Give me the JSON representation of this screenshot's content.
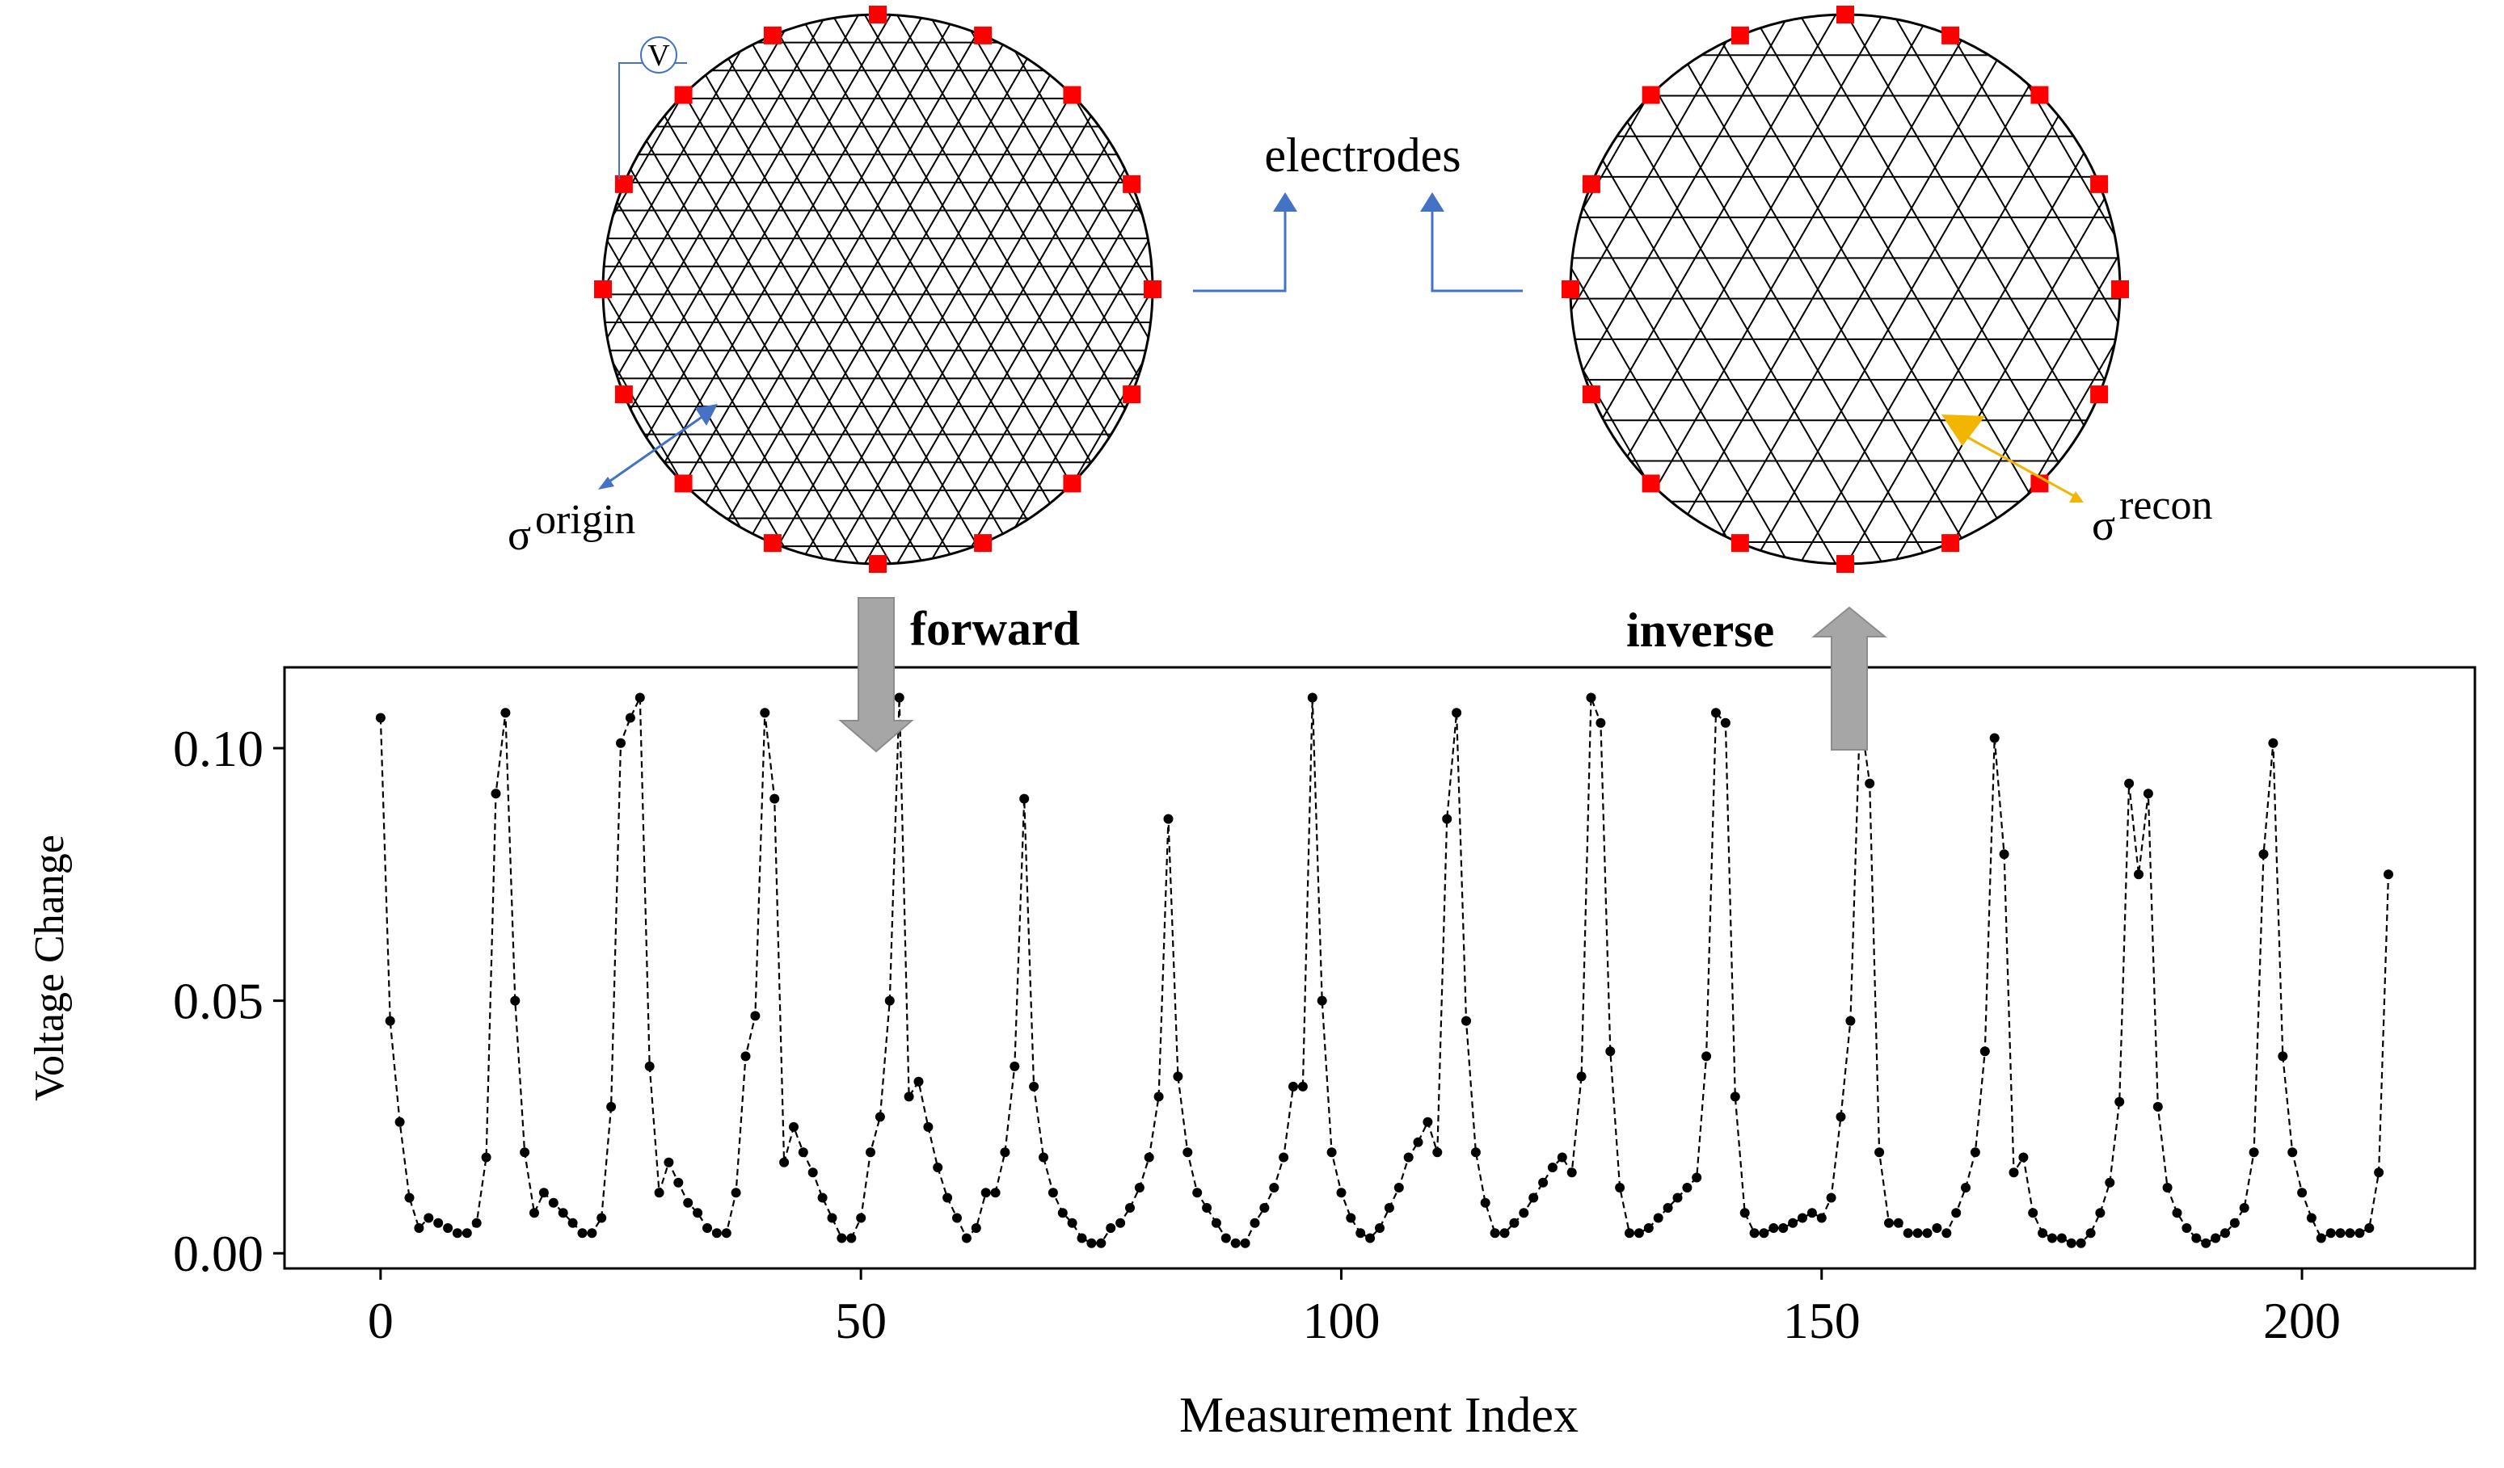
{
  "figure": {
    "electrodes_label": "electrodes",
    "voltmeter_symbol": "V",
    "forward_label": "forward",
    "inverse_label": "inverse",
    "sigma_symbol": "σ",
    "origin_label": "origin",
    "recon_label": "recon",
    "colors": {
      "electrode": "#ff0000",
      "mesh": "#000000",
      "connector": "#4472c4",
      "origin_marker": "#4472c4",
      "recon_marker": "#f2b600",
      "arrow": "#a6a6a6",
      "data_line": "#000000"
    },
    "electrode_count": 16
  },
  "chart_data": {
    "type": "line",
    "xlabel": "Measurement Index",
    "ylabel": "Voltage Change",
    "xlim": [
      -10,
      218
    ],
    "ylim": [
      -0.003,
      0.116
    ],
    "xticks": [
      0,
      50,
      100,
      150,
      200
    ],
    "yticks": [
      0.0,
      0.05,
      0.1
    ],
    "xtick_labels": [
      "0",
      "50",
      "100",
      "150",
      "200"
    ],
    "ytick_labels": [
      "0.00",
      "0.05",
      "0.10"
    ],
    "line_style": "dashed",
    "marker": "circle",
    "grid": false,
    "series": [
      {
        "x_start": 0,
        "values": [
          0.106,
          0.046,
          0.026,
          0.011,
          0.005,
          0.007,
          0.006,
          0.005,
          0.004,
          0.004,
          0.006,
          0.019,
          0.091,
          0.107,
          0.05,
          0.02,
          0.008,
          0.012,
          0.01,
          0.008,
          0.006,
          0.004,
          0.004,
          0.007,
          0.029,
          0.101,
          0.106,
          0.11,
          0.037,
          0.012,
          0.018,
          0.014,
          0.01,
          0.008,
          0.005,
          0.004,
          0.004,
          0.012,
          0.039,
          0.047,
          0.107,
          0.09,
          0.018,
          0.025,
          0.02,
          0.016,
          0.011,
          0.007,
          0.003,
          0.003,
          0.007,
          0.02,
          0.027,
          0.05,
          0.11,
          0.031,
          0.034,
          0.025,
          0.017,
          0.011,
          0.007,
          0.003,
          0.005,
          0.012,
          0.012,
          0.02,
          0.037,
          0.09,
          0.033,
          0.019,
          0.012,
          0.008,
          0.006,
          0.003,
          0.002,
          0.002,
          0.005,
          0.006,
          0.009,
          0.013,
          0.019,
          0.031,
          0.086,
          0.035,
          0.02,
          0.012,
          0.009,
          0.006,
          0.003,
          0.002,
          0.002,
          0.006,
          0.009,
          0.013,
          0.019,
          0.033,
          0.033,
          0.11,
          0.05,
          0.02,
          0.012,
          0.007,
          0.004,
          0.003,
          0.005,
          0.009,
          0.013,
          0.019,
          0.022,
          0.026,
          0.02,
          0.086,
          0.107,
          0.046,
          0.02,
          0.01,
          0.004,
          0.004,
          0.006,
          0.008,
          0.011,
          0.014,
          0.017,
          0.019,
          0.016,
          0.035,
          0.11,
          0.105,
          0.04,
          0.013,
          0.004,
          0.004,
          0.005,
          0.007,
          0.009,
          0.011,
          0.013,
          0.015,
          0.039,
          0.107,
          0.105,
          0.031,
          0.008,
          0.004,
          0.004,
          0.005,
          0.005,
          0.006,
          0.007,
          0.008,
          0.007,
          0.011,
          0.027,
          0.046,
          0.107,
          0.093,
          0.02,
          0.006,
          0.006,
          0.004,
          0.004,
          0.004,
          0.005,
          0.004,
          0.008,
          0.013,
          0.02,
          0.04,
          0.102,
          0.079,
          0.016,
          0.019,
          0.008,
          0.004,
          0.003,
          0.003,
          0.002,
          0.002,
          0.004,
          0.008,
          0.014,
          0.03,
          0.093,
          0.075,
          0.091,
          0.029,
          0.013,
          0.008,
          0.005,
          0.003,
          0.002,
          0.003,
          0.004,
          0.006,
          0.009,
          0.02,
          0.079,
          0.101,
          0.039,
          0.02,
          0.012,
          0.007,
          0.003,
          0.004,
          0.004,
          0.004,
          0.004,
          0.005,
          0.016,
          0.075
        ]
      }
    ]
  }
}
